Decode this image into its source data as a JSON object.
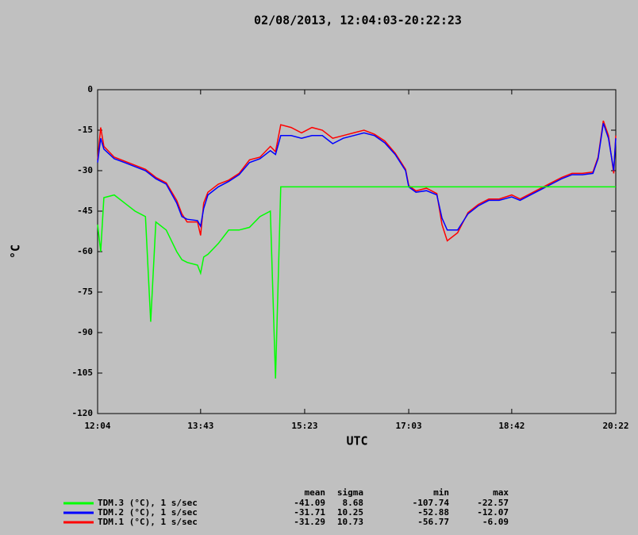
{
  "chart_data": {
    "type": "line",
    "title": "02/08/2013, 12:04:03-20:22:23",
    "x_label": "UTC",
    "y_label": "°C",
    "x": [
      "12:04",
      "12:07",
      "12:10",
      "12:20",
      "12:30",
      "12:40",
      "12:50",
      "12:55",
      "13:00",
      "13:10",
      "13:20",
      "13:25",
      "13:30",
      "13:40",
      "13:43",
      "13:46",
      "13:50",
      "14:00",
      "14:10",
      "14:20",
      "14:30",
      "14:40",
      "14:50",
      "14:55",
      "15:00",
      "15:10",
      "15:20",
      "15:30",
      "15:40",
      "15:50",
      "16:00",
      "16:10",
      "16:20",
      "16:30",
      "16:40",
      "16:50",
      "17:00",
      "17:03",
      "17:10",
      "17:20",
      "17:30",
      "17:35",
      "17:40",
      "17:50",
      "18:00",
      "18:10",
      "18:20",
      "18:30",
      "18:42",
      "18:50",
      "19:00",
      "19:10",
      "19:20",
      "19:30",
      "19:40",
      "19:50",
      "20:00",
      "20:05",
      "20:10",
      "20:15",
      "20:20",
      "20:22"
    ],
    "xlim": [
      "12:04",
      "20:22"
    ],
    "xticks": [
      "12:04",
      "13:43",
      "15:23",
      "17:03",
      "18:42",
      "20:22"
    ],
    "ylim": [
      -120,
      0
    ],
    "yticks": [
      0,
      -15,
      -30,
      -45,
      -60,
      -75,
      -90,
      -105,
      -120
    ],
    "series": [
      {
        "name": "TDM.3 (°C), 1 s/sec",
        "color": "#00ff00",
        "values": [
          -50,
          -60,
          -40,
          -39,
          -42,
          -45,
          -47,
          -86,
          -49,
          -52,
          -60,
          -63,
          -64,
          -65,
          -68,
          -62,
          -61,
          -57,
          -52,
          -52,
          -51,
          -47,
          -45,
          -107,
          -36,
          -36,
          -36,
          -36,
          -36,
          -36,
          -36,
          -36,
          -36,
          -36,
          -36,
          -36,
          -36,
          -36,
          -36,
          -36,
          -36,
          -36,
          -36,
          -36,
          -36,
          -36,
          -36,
          -36,
          -36,
          -36,
          -36,
          -36,
          -36,
          -36,
          -36,
          -36,
          -36,
          -36,
          -36,
          -36,
          -36,
          -36
        ]
      },
      {
        "name": "TDM.2 (°C), 1 s/sec",
        "color": "#0000ff",
        "values": [
          -27,
          -18,
          -22,
          -25.6,
          -27,
          -28.5,
          -30,
          -31.5,
          -33,
          -35,
          -42,
          -47,
          -48,
          -48.5,
          -50.6,
          -44,
          -39,
          -36,
          -34,
          -31.5,
          -27,
          -25.6,
          -22.6,
          -24,
          -17,
          -17,
          -18,
          -17,
          -17,
          -20,
          -18,
          -17,
          -16,
          -17,
          -19.7,
          -24,
          -30,
          -36,
          -38,
          -37.4,
          -39,
          -47.6,
          -52,
          -52,
          -46,
          -43,
          -41,
          -41,
          -39.7,
          -41,
          -39,
          -37,
          -35,
          -33,
          -31.5,
          -31.5,
          -31,
          -25.6,
          -12.4,
          -18,
          -30,
          -18
        ]
      },
      {
        "name": "TDM.1 (°C), 1 s/sec",
        "color": "#ff0000",
        "values": [
          -26,
          -14,
          -21,
          -25,
          -26.5,
          -28,
          -29.5,
          -31,
          -32.5,
          -34.5,
          -41,
          -46,
          -49,
          -49,
          -54,
          -42,
          -38,
          -35,
          -33.5,
          -31,
          -26,
          -25,
          -21,
          -23,
          -13,
          -14,
          -16,
          -14,
          -15,
          -18,
          -17,
          -16,
          -15,
          -16.5,
          -19,
          -23.5,
          -29.5,
          -35.5,
          -37.5,
          -36.5,
          -38.5,
          -50,
          -56,
          -53,
          -45.5,
          -42.5,
          -40.5,
          -40.5,
          -39,
          -40.5,
          -38.5,
          -36.5,
          -34.5,
          -32.5,
          -31,
          -31,
          -30.5,
          -25,
          -11.5,
          -17,
          -31,
          -17
        ]
      }
    ],
    "stats": {
      "columns": [
        "mean",
        "sigma",
        "min",
        "max"
      ],
      "rows": [
        [
          -41.09,
          8.68,
          -107.74,
          -22.57
        ],
        [
          -31.71,
          10.25,
          -52.88,
          -12.07
        ],
        [
          -31.29,
          10.73,
          -56.77,
          -6.09
        ]
      ]
    }
  }
}
